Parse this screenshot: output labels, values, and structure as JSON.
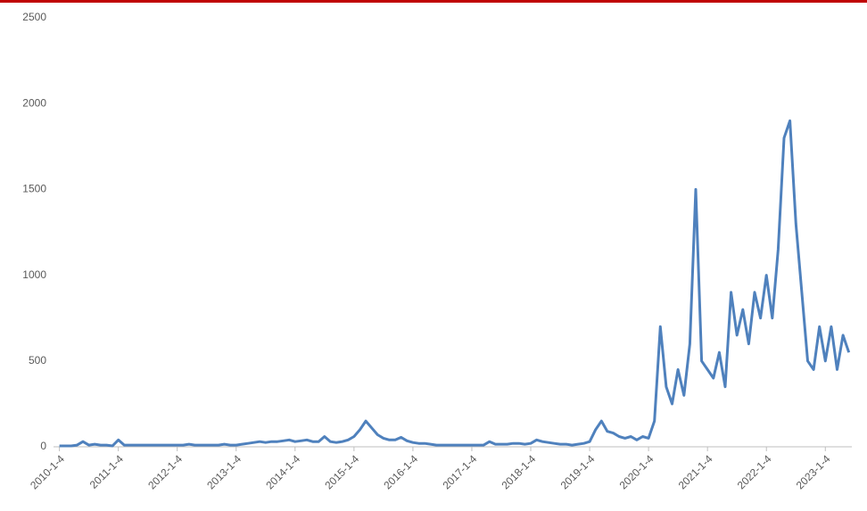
{
  "chart_data": {
    "type": "line",
    "x": [
      2010.0,
      2010.1,
      2010.2,
      2010.3,
      2010.4,
      2010.5,
      2010.6,
      2010.7,
      2010.8,
      2010.9,
      2011.0,
      2011.1,
      2011.2,
      2011.3,
      2011.4,
      2011.5,
      2011.6,
      2011.7,
      2011.8,
      2011.9,
      2012.0,
      2012.1,
      2012.2,
      2012.3,
      2012.4,
      2012.5,
      2012.6,
      2012.7,
      2012.8,
      2012.9,
      2013.0,
      2013.1,
      2013.2,
      2013.3,
      2013.4,
      2013.5,
      2013.6,
      2013.7,
      2013.8,
      2013.9,
      2014.0,
      2014.1,
      2014.2,
      2014.3,
      2014.4,
      2014.5,
      2014.6,
      2014.7,
      2014.8,
      2014.9,
      2015.0,
      2015.1,
      2015.2,
      2015.3,
      2015.4,
      2015.5,
      2015.6,
      2015.7,
      2015.8,
      2015.9,
      2016.0,
      2016.1,
      2016.2,
      2016.3,
      2016.4,
      2016.5,
      2016.6,
      2016.7,
      2016.8,
      2016.9,
      2017.0,
      2017.1,
      2017.2,
      2017.3,
      2017.4,
      2017.5,
      2017.6,
      2017.7,
      2017.8,
      2017.9,
      2018.0,
      2018.1,
      2018.2,
      2018.3,
      2018.4,
      2018.5,
      2018.6,
      2018.7,
      2018.8,
      2018.9,
      2019.0,
      2019.1,
      2019.2,
      2019.3,
      2019.4,
      2019.5,
      2019.6,
      2019.7,
      2019.8,
      2019.9,
      2020.0,
      2020.1,
      2020.2,
      2020.3,
      2020.4,
      2020.5,
      2020.6,
      2020.7,
      2020.8,
      2020.9,
      2021.0,
      2021.1,
      2021.2,
      2021.3,
      2021.4,
      2021.5,
      2021.6,
      2021.7,
      2021.8,
      2021.9,
      2022.0,
      2022.1,
      2022.2,
      2022.3,
      2022.4,
      2022.5,
      2022.6,
      2022.7,
      2022.8,
      2022.9,
      2023.0,
      2023.1,
      2023.2,
      2023.3,
      2023.4
    ],
    "series": [
      {
        "color": "#4f81bd",
        "values": [
          5,
          5,
          5,
          10,
          30,
          10,
          15,
          10,
          10,
          5,
          40,
          10,
          10,
          10,
          10,
          10,
          10,
          10,
          10,
          10,
          10,
          10,
          15,
          10,
          10,
          10,
          10,
          10,
          15,
          10,
          10,
          15,
          20,
          25,
          30,
          25,
          30,
          30,
          35,
          40,
          30,
          35,
          40,
          30,
          30,
          60,
          30,
          25,
          30,
          40,
          60,
          100,
          150,
          110,
          70,
          50,
          40,
          40,
          55,
          35,
          25,
          20,
          20,
          15,
          10,
          10,
          10,
          10,
          10,
          10,
          10,
          10,
          10,
          30,
          15,
          15,
          15,
          20,
          20,
          15,
          20,
          40,
          30,
          25,
          20,
          15,
          15,
          10,
          15,
          20,
          30,
          100,
          150,
          90,
          80,
          60,
          50,
          60,
          40,
          60,
          50,
          150,
          700,
          350,
          250,
          450,
          300,
          600,
          1500,
          500,
          450,
          400,
          550,
          350,
          900,
          650,
          800,
          600,
          900,
          750,
          1000,
          750,
          1150,
          1800,
          1900,
          1300,
          900,
          500,
          450,
          700,
          500,
          700,
          450,
          650,
          550
        ]
      }
    ],
    "xlim": [
      2009.9,
      2023.45
    ],
    "xticks": [
      {
        "value": 2010,
        "label": "2010-1-4"
      },
      {
        "value": 2011,
        "label": "2011-1-4"
      },
      {
        "value": 2012,
        "label": "2012-1-4"
      },
      {
        "value": 2013,
        "label": "2013-1-4"
      },
      {
        "value": 2014,
        "label": "2014-1-4"
      },
      {
        "value": 2015,
        "label": "2015-1-4"
      },
      {
        "value": 2016,
        "label": "2016-1-4"
      },
      {
        "value": 2017,
        "label": "2017-1-4"
      },
      {
        "value": 2018,
        "label": "2018-1-4"
      },
      {
        "value": 2019,
        "label": "2019-1-4"
      },
      {
        "value": 2020,
        "label": "2020-1-4"
      },
      {
        "value": 2021,
        "label": "2021-1-4"
      },
      {
        "value": 2022,
        "label": "2022-1-4"
      },
      {
        "value": 2023,
        "label": "2023-1-4"
      }
    ],
    "ylim": [
      0,
      2500
    ],
    "yticks": [
      0,
      500,
      1000,
      1500,
      2000,
      2500
    ],
    "grid": false
  }
}
